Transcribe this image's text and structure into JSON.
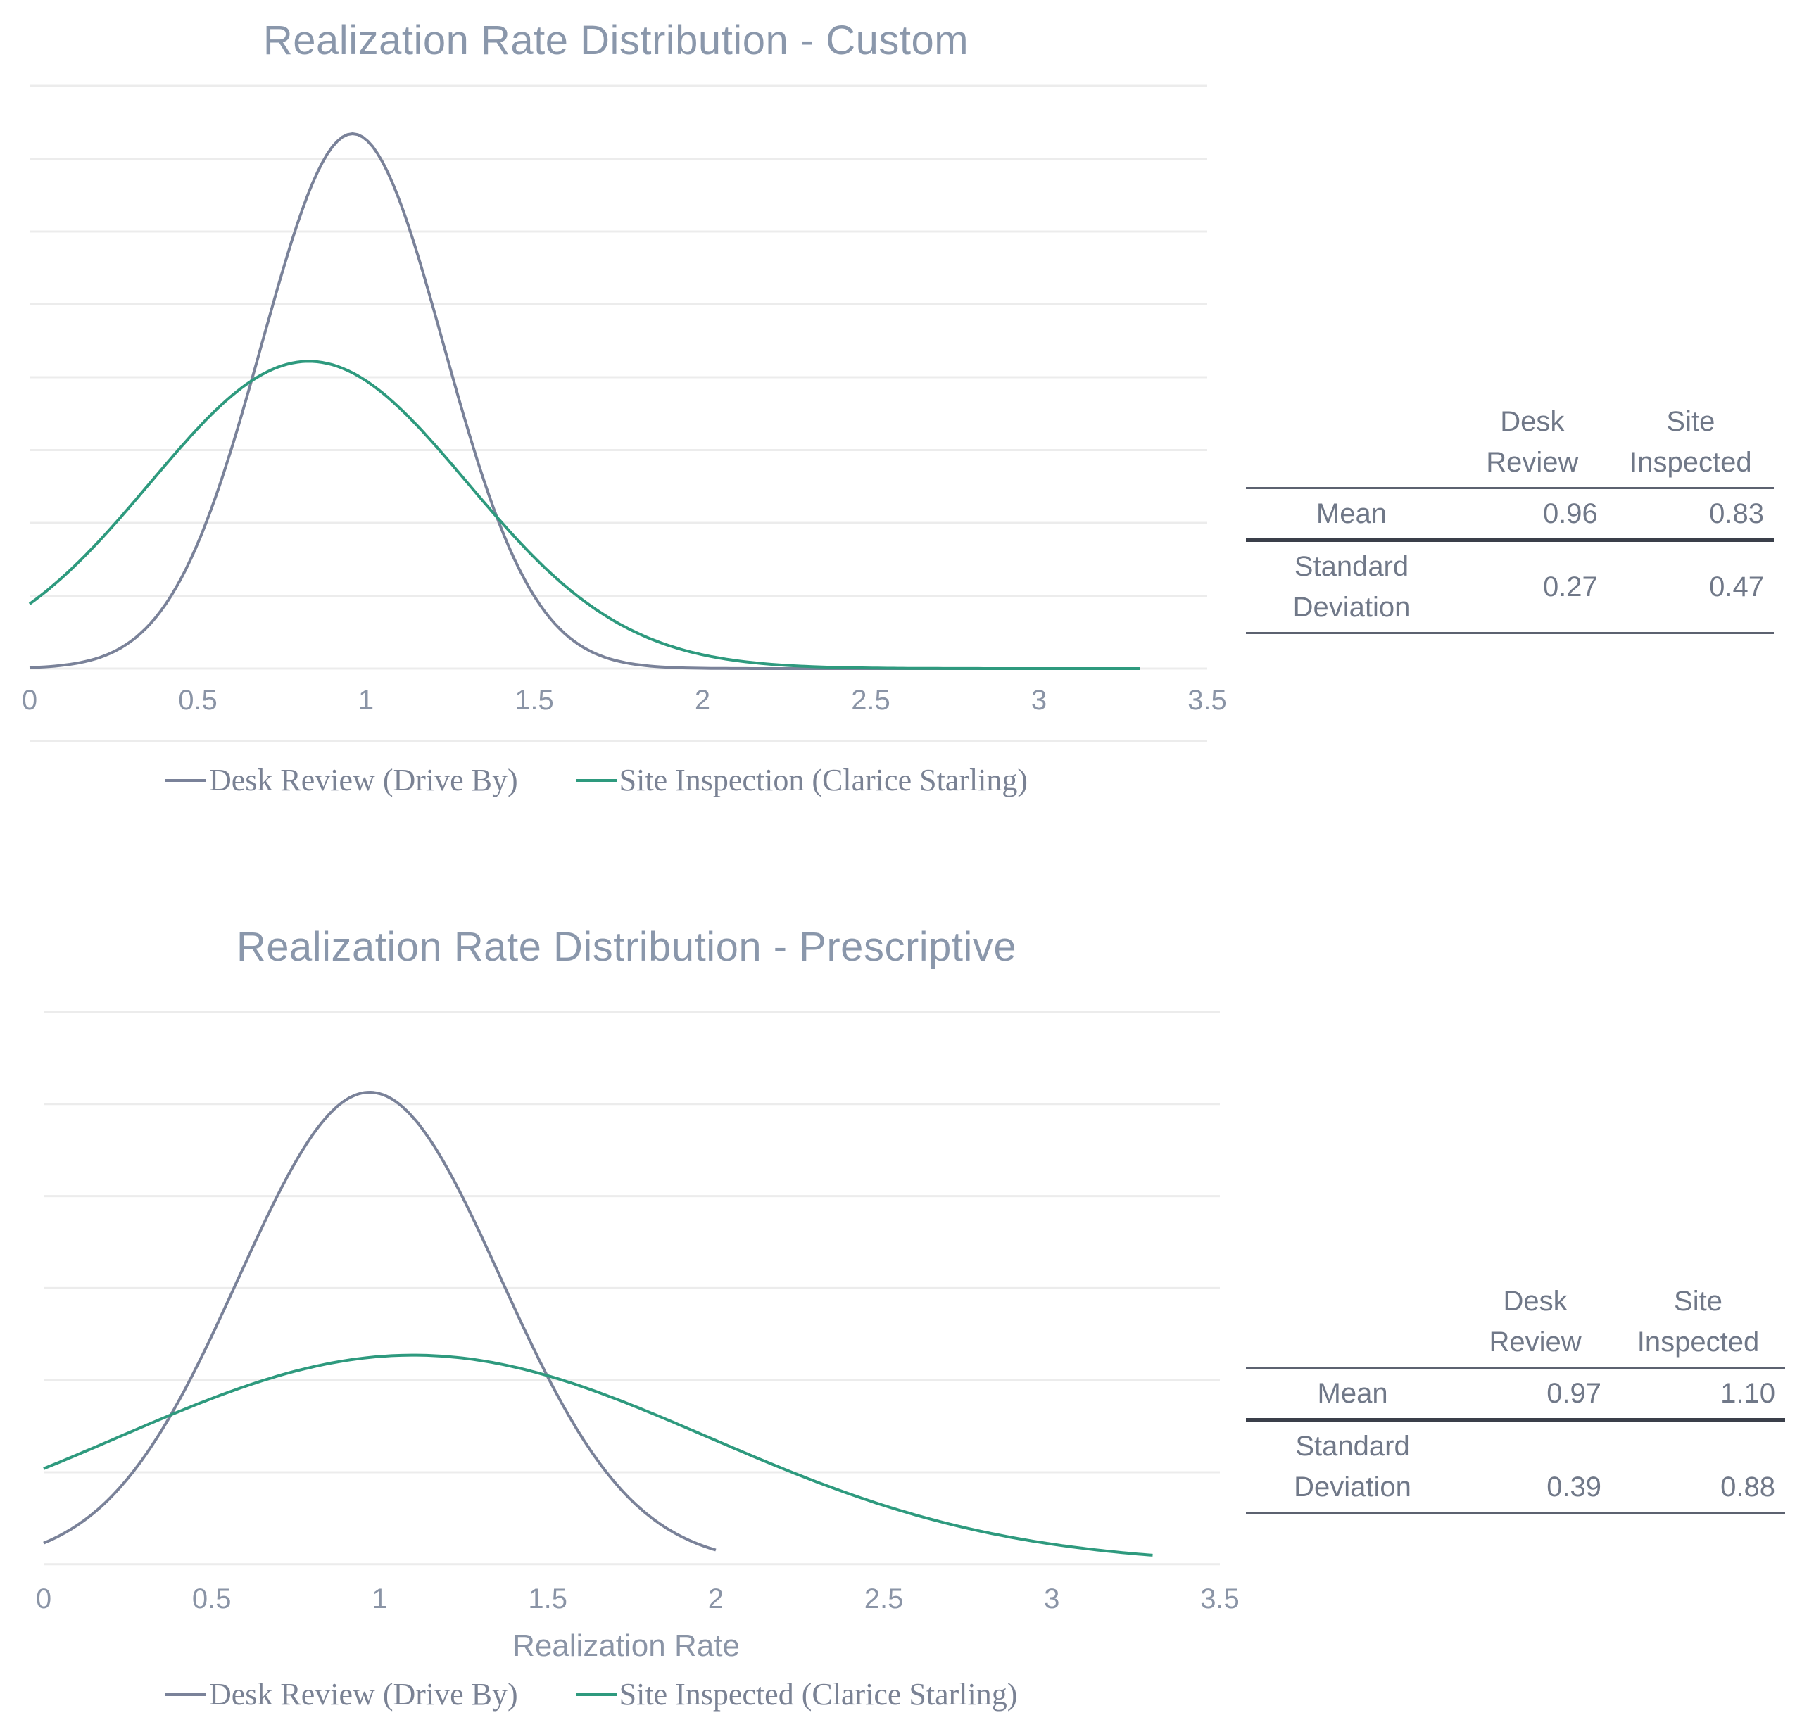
{
  "colors": {
    "desk": "#7a8299",
    "site": "#2e9a7e",
    "grid": "#ececec"
  },
  "chart_data": [
    {
      "type": "line",
      "title": "Realization Rate Distribution - Custom",
      "xlabel": "",
      "xticks": [
        "0",
        "0.5",
        "1",
        "1.5",
        "2",
        "2.5",
        "3",
        "3.5"
      ],
      "xlim": [
        0,
        3.5
      ],
      "grid": true,
      "legend_position": "bottom",
      "series": [
        {
          "name": "Desk Review (Drive By)",
          "distribution": "normal",
          "mean": 0.96,
          "sd": 0.27,
          "x_range": [
            0,
            3.3
          ]
        },
        {
          "name": "Site Inspection (Clarice Starling)",
          "distribution": "normal",
          "mean": 0.83,
          "sd": 0.47,
          "x_range": [
            0,
            3.3
          ]
        }
      ],
      "table": {
        "columns": [
          "Desk Review",
          "Site Inspected"
        ],
        "rows": [
          {
            "label": "Mean",
            "values": [
              "0.96",
              "0.83"
            ]
          },
          {
            "label": "Standard Deviation",
            "values": [
              "0.27",
              "0.47"
            ]
          }
        ]
      }
    },
    {
      "type": "line",
      "title": "Realization Rate Distribution - Prescriptive",
      "xlabel": "Realization Rate",
      "xticks": [
        "0",
        "0.5",
        "1",
        "1.5",
        "2",
        "2.5",
        "3",
        "3.5"
      ],
      "xlim": [
        0,
        3.5
      ],
      "grid": true,
      "legend_position": "bottom",
      "series": [
        {
          "name": "Desk Review (Drive By)",
          "distribution": "normal",
          "mean": 0.97,
          "sd": 0.39,
          "x_range": [
            0,
            2.0
          ]
        },
        {
          "name": "Site Inspected (Clarice Starling)",
          "distribution": "normal",
          "mean": 1.1,
          "sd": 0.88,
          "x_range": [
            0,
            3.3
          ]
        }
      ],
      "table": {
        "columns": [
          "Desk Review",
          "Site Inspected"
        ],
        "rows": [
          {
            "label": "Mean",
            "values": [
              "0.97",
              "1.10"
            ]
          },
          {
            "label": "Standard Deviation",
            "values": [
              "0.39",
              "0.88"
            ]
          }
        ]
      }
    }
  ]
}
